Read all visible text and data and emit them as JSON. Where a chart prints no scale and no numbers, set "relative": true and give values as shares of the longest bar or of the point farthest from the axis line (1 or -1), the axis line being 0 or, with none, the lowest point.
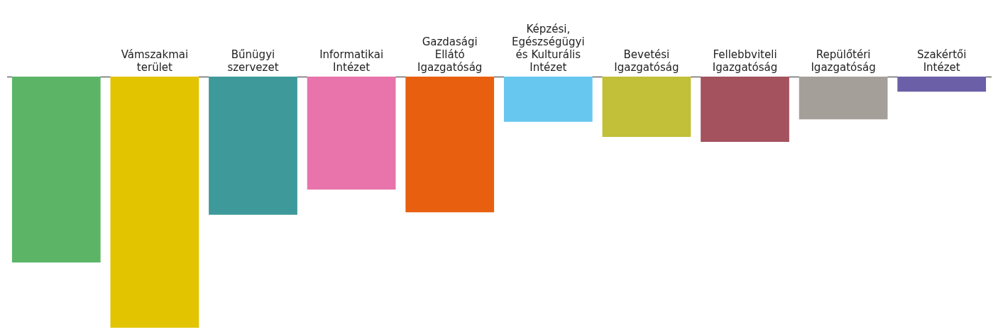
{
  "chart_data": {
    "type": "bar",
    "relative": true,
    "categories": [
      null,
      "Vámszakmai terület",
      "Bűnügyi szervezet",
      "Informatikai Intézet",
      "Gazdasági Ellátó Igazgatóság",
      "Képzési, Egészségügyi és Kulturális Intézet",
      "Bevetési Igazgatóság",
      "Fellebbviteli Igazgatóság",
      "Repülőtéri Igazgatóság",
      "Szakértői Intézet"
    ],
    "values": [
      -0.74,
      -1,
      -0.55,
      -0.45,
      -0.54,
      -0.18,
      -0.24,
      -0.26,
      -0.17,
      -0.06
    ],
    "colors": [
      "#5cb567",
      "#e2c400",
      "#3e9a9a",
      "#e874ab",
      "#e8600f",
      "#67c7ef",
      "#c2bf38",
      "#a4525e",
      "#a59f99",
      "#6b5fa8"
    ],
    "grid": false,
    "legend": false
  }
}
